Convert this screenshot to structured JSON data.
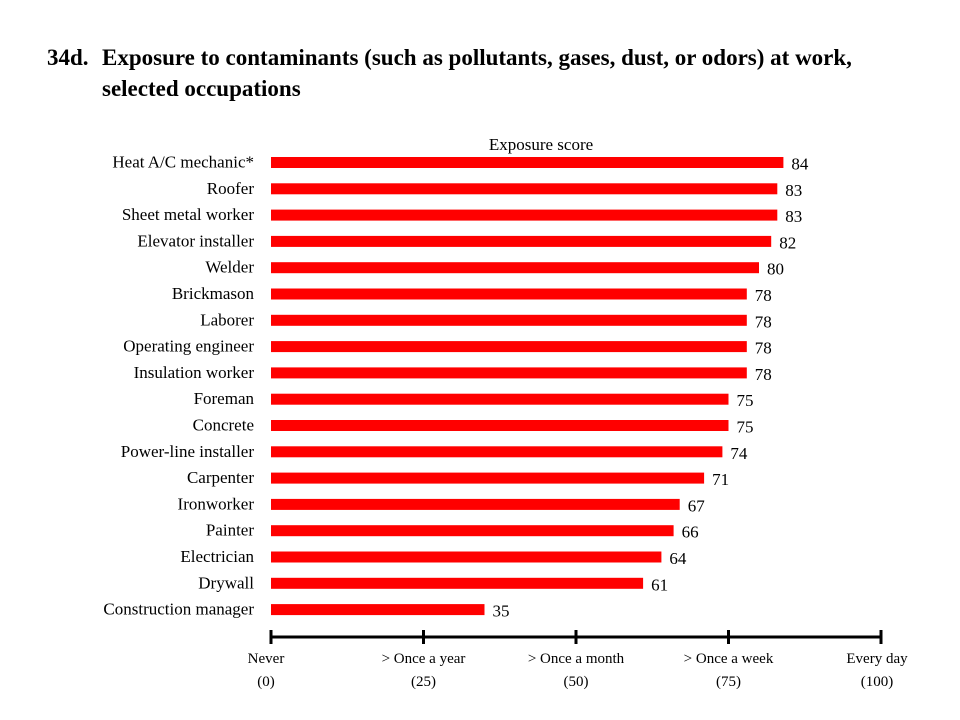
{
  "title": {
    "number": "34d.",
    "text": "Exposure to contaminants (such as pollutants, gases, dust, or odors) at work, selected occupations"
  },
  "colors": {
    "bar": "#ff0000",
    "axis": "#000000"
  },
  "chart_data": {
    "type": "bar",
    "orientation": "horizontal",
    "ylabel": "Exposure score",
    "categories": [
      "Heat A/C mechanic*",
      "Roofer",
      "Sheet metal worker",
      "Elevator installer",
      "Welder",
      "Brickmason",
      "Laborer",
      "Operating engineer",
      "Insulation worker",
      "Foreman",
      "Concrete",
      "Power-line installer",
      "Carpenter",
      "Ironworker",
      "Painter",
      "Electrician",
      "Drywall",
      "Construction manager"
    ],
    "values": [
      84,
      83,
      83,
      82,
      80,
      78,
      78,
      78,
      78,
      75,
      75,
      74,
      71,
      67,
      66,
      64,
      61,
      35
    ],
    "value_labels": [
      "84",
      "83",
      "83",
      "82",
      "80",
      "78",
      "78",
      "78",
      "78",
      "75",
      "75",
      "74",
      "71",
      "67",
      "66",
      "64",
      "61",
      "35"
    ],
    "xlim": [
      0,
      100
    ],
    "ticks": [
      {
        "value": 0,
        "line1": "Never",
        "line2": "(0)"
      },
      {
        "value": 25,
        "line1": "> Once a year",
        "line2": "(25)"
      },
      {
        "value": 50,
        "line1": "> Once a month",
        "line2": "(50)"
      },
      {
        "value": 75,
        "line1": "> Once a week",
        "line2": "(75)"
      },
      {
        "value": 100,
        "line1": "Every day",
        "line2": "(100)"
      }
    ],
    "grid": false,
    "legend": "none"
  }
}
